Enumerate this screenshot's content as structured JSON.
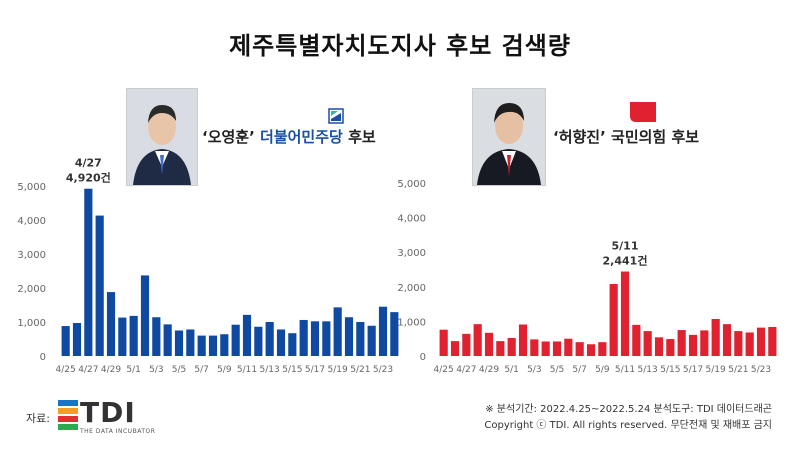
{
  "title": "제주특별자치도지사 후보 검색량",
  "candidates": [
    {
      "quote_name": "‘오영훈’",
      "party": "더불어민주당",
      "suffix": "후보",
      "party_color": "#1a4fa3"
    },
    {
      "quote_name": "‘허향진’",
      "party": "국민의힘",
      "suffix": "후보",
      "party_color": "#e0212f"
    }
  ],
  "chart_data": [
    {
      "type": "bar",
      "color": "#0f4aa0",
      "ylim": [
        0,
        5000
      ],
      "yticks": [
        "0",
        "1,000",
        "2,000",
        "3,000",
        "4,000",
        "5,000"
      ],
      "xtick_labels": [
        "4/25",
        "4/27",
        "4/29",
        "5/1",
        "5/3",
        "5/5",
        "5/7",
        "5/9",
        "5/11",
        "5/13",
        "5/15",
        "5/17",
        "5/19",
        "5/21",
        "5/23"
      ],
      "categories": [
        "4/25",
        "4/26",
        "4/27",
        "4/28",
        "4/29",
        "4/30",
        "5/1",
        "5/2",
        "5/3",
        "5/4",
        "5/5",
        "5/6",
        "5/7",
        "5/8",
        "5/9",
        "5/10",
        "5/11",
        "5/12",
        "5/13",
        "5/14",
        "5/15",
        "5/16",
        "5/17",
        "5/18",
        "5/19",
        "5/20",
        "5/21",
        "5/22",
        "5/23",
        "5/24"
      ],
      "values": [
        880,
        970,
        4920,
        4130,
        1880,
        1130,
        1180,
        2370,
        1140,
        930,
        750,
        780,
        600,
        600,
        640,
        920,
        1210,
        860,
        1000,
        780,
        670,
        1060,
        1020,
        1020,
        1430,
        1140,
        1000,
        890,
        1450,
        1290
      ],
      "peak_label_date": "4/27",
      "peak_label_value": "4,920건"
    },
    {
      "type": "bar",
      "color": "#e0212f",
      "ylim": [
        0,
        5000
      ],
      "yticks": [
        "0",
        "1,000",
        "2,000",
        "3,000",
        "4,000",
        "5,000"
      ],
      "xtick_labels": [
        "4/25",
        "4/27",
        "4/29",
        "5/1",
        "5/3",
        "5/5",
        "5/7",
        "5/9",
        "5/11",
        "5/13",
        "5/15",
        "5/17",
        "5/19",
        "5/21",
        "5/23"
      ],
      "categories": [
        "4/25",
        "4/26",
        "4/27",
        "4/28",
        "4/29",
        "4/30",
        "5/1",
        "5/2",
        "5/3",
        "5/4",
        "5/5",
        "5/6",
        "5/7",
        "5/8",
        "5/9",
        "5/10",
        "5/11",
        "5/12",
        "5/13",
        "5/14",
        "5/15",
        "5/16",
        "5/17",
        "5/18",
        "5/19",
        "5/20",
        "5/21",
        "5/22",
        "5/23",
        "5/24"
      ],
      "values": [
        760,
        430,
        640,
        920,
        670,
        430,
        520,
        910,
        480,
        420,
        420,
        500,
        400,
        340,
        400,
        2080,
        2441,
        900,
        720,
        540,
        490,
        750,
        610,
        740,
        1070,
        920,
        720,
        680,
        820,
        840
      ],
      "peak_label_date": "5/11",
      "peak_label_value": "2,441건"
    }
  ],
  "footer": {
    "source_label": "자료:",
    "logo_text": "TDI",
    "logo_sub": "THE DATA INCUBATOR",
    "note": "※ 분석기간: 2022.4.25~2022.5.24  분석도구: TDI 데이터드래곤",
    "copyright": "Copyright ⓒ TDI. All rights reserved. 무단전재 및 재배포 금지"
  }
}
